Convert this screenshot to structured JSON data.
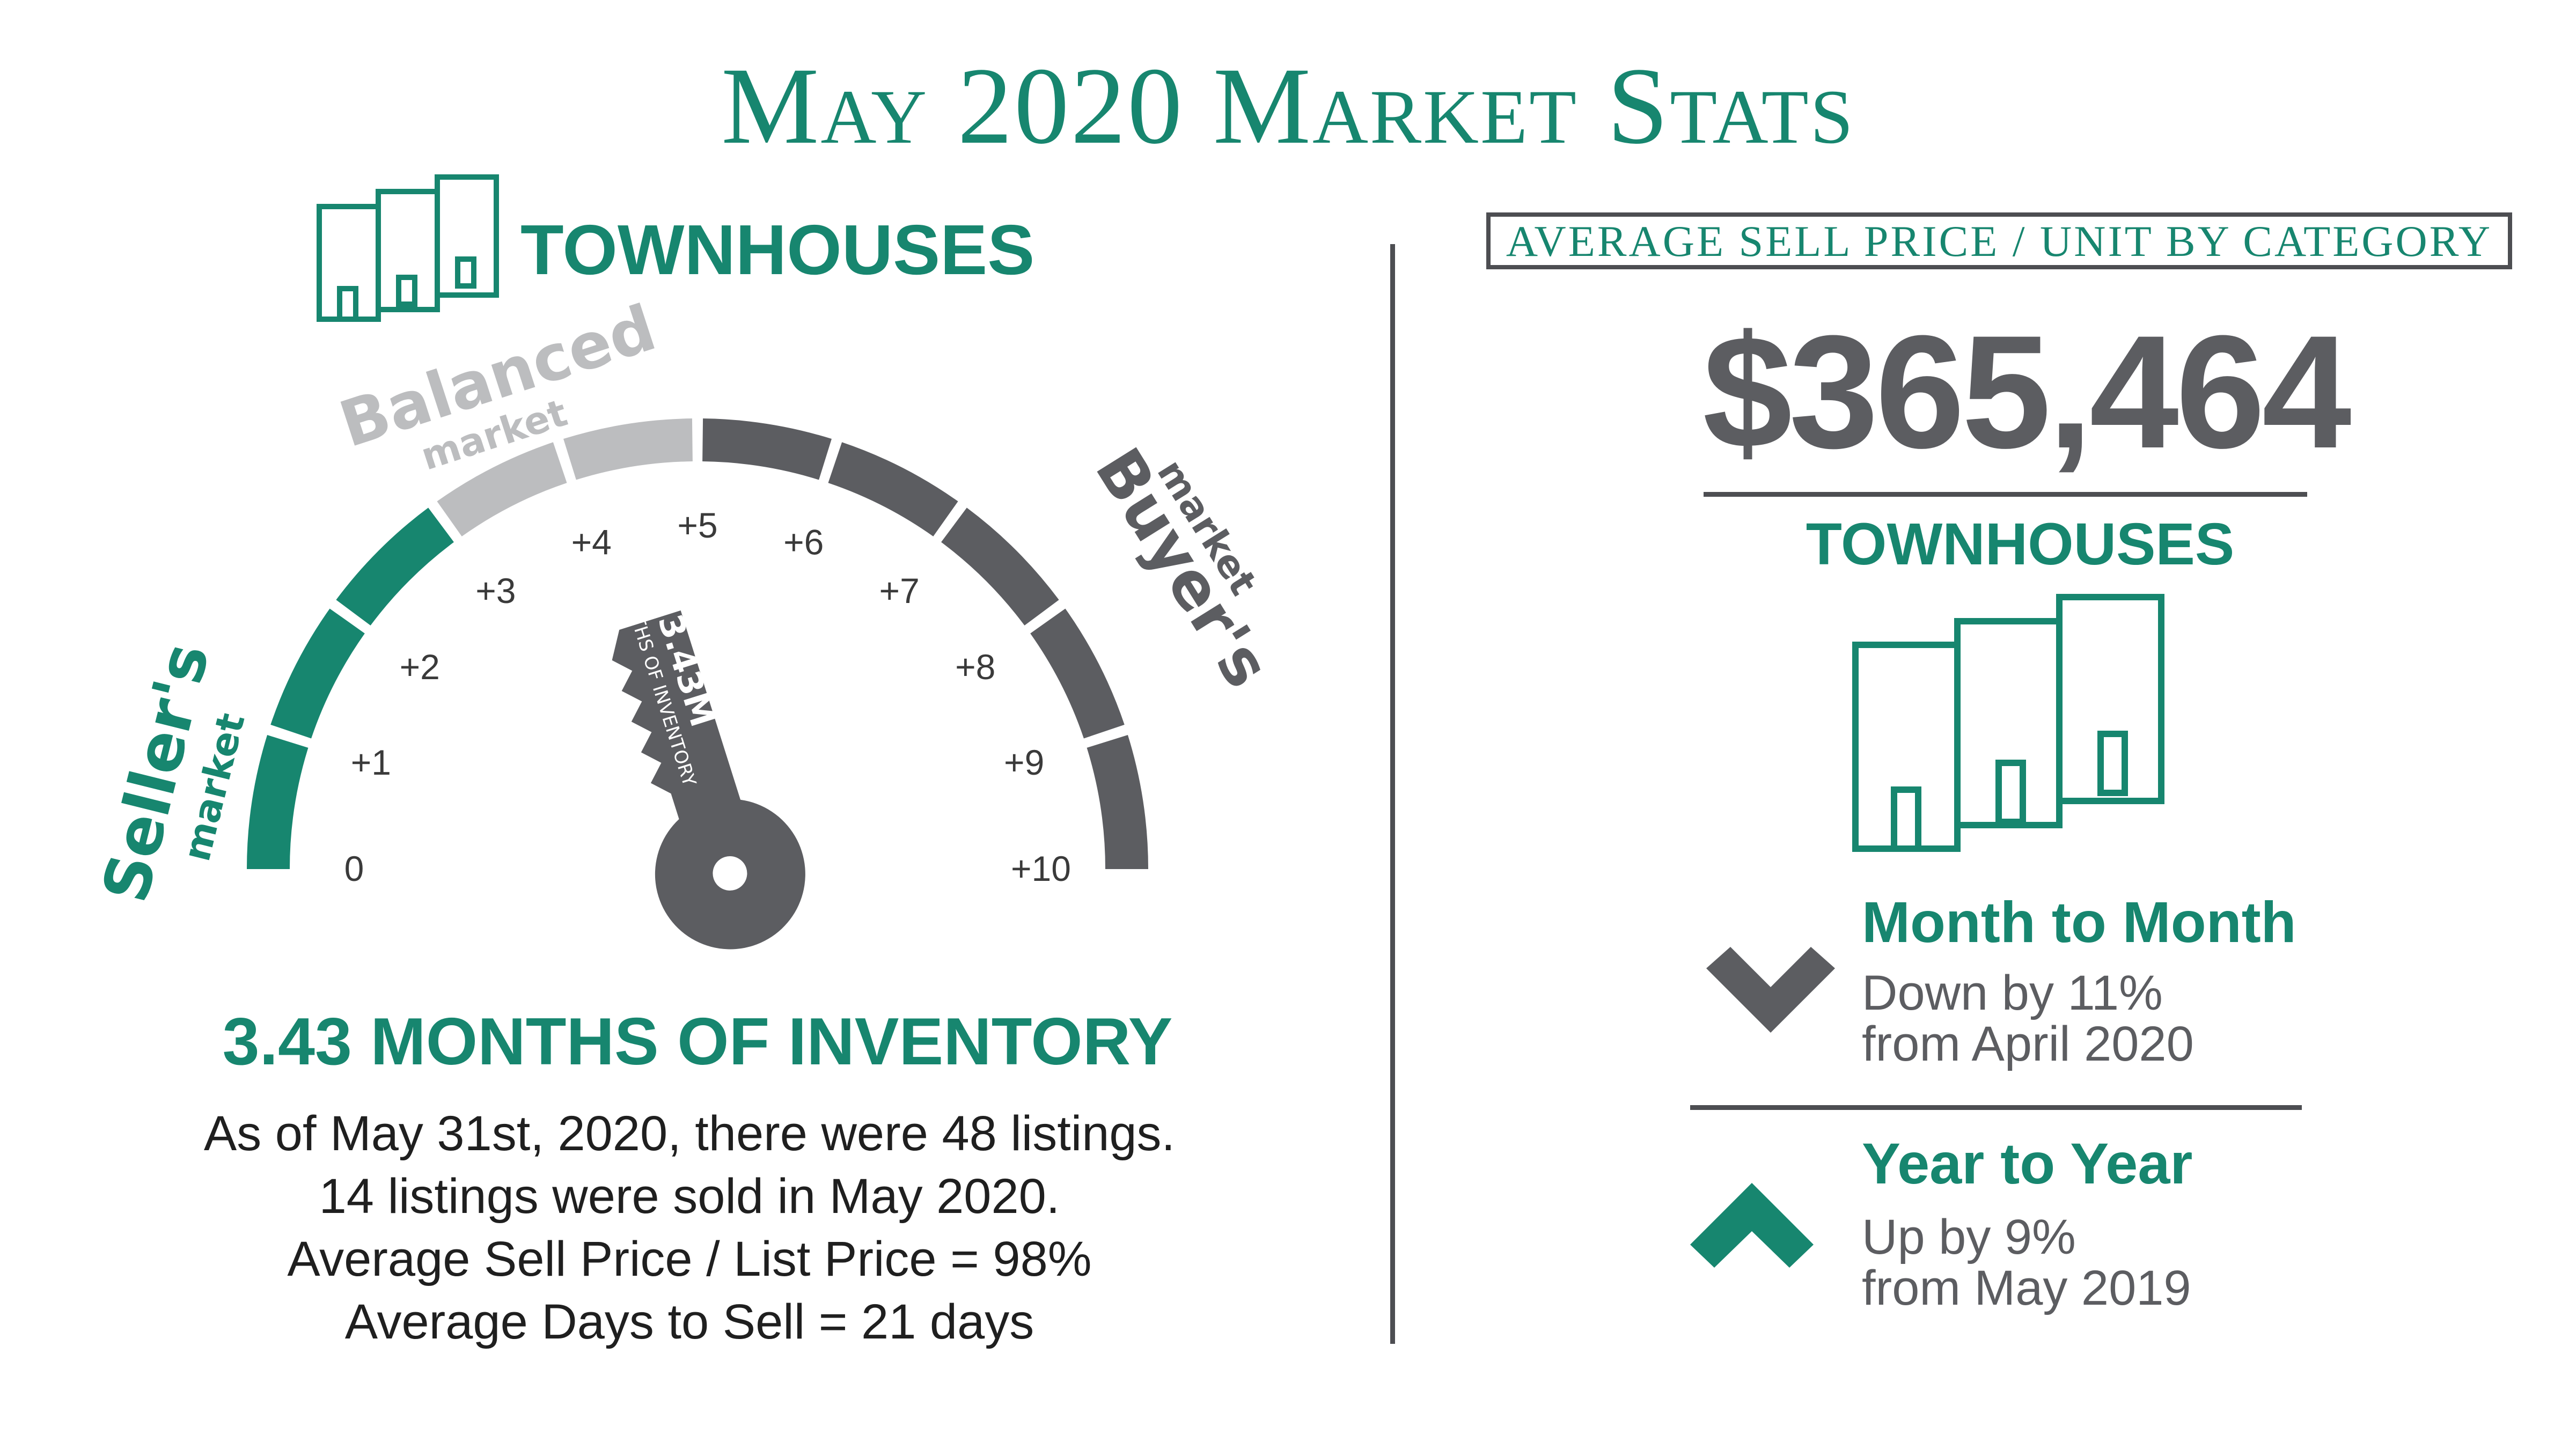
{
  "title": "May 2020 Market Stats",
  "left_panel": {
    "property_type": "TOWNHOUSES",
    "gauge": {
      "sellers_label": "Seller's",
      "sellers_sub": "market",
      "balanced_label": "Balanced",
      "balanced_sub": "market",
      "buyers_label": "Buyer's",
      "buyers_sub": "market",
      "ticks": [
        "0",
        "+1",
        "+2",
        "+3",
        "+4",
        "+5",
        "+6",
        "+7",
        "+8",
        "+9",
        "+10"
      ],
      "value": 3.43,
      "key_value_label": "3.43M",
      "key_caption": "MONTHS OF INVENTORY",
      "colors": {
        "sellers": "#17866f",
        "balanced": "#bcbdbf",
        "buyers": "#5c5d61"
      }
    },
    "headline": "3.43 MONTHS OF INVENTORY",
    "stats": [
      "As of May 31st, 2020, there were 48 listings.",
      "14 listings were sold in May 2020.",
      "Average Sell Price / List Price = 98%",
      "Average Days to Sell = 21 days"
    ]
  },
  "right_panel": {
    "category_header": "AVERAGE SELL PRICE / UNIT BY CATEGORY",
    "price": "$365,464",
    "property_type": "TOWNHOUSES",
    "month_to_month": {
      "title": "Month to Month",
      "line1": "Down by 11%",
      "line2": "from April 2020",
      "icon": "chevron-down-icon",
      "color": "#5c5d61"
    },
    "year_to_year": {
      "title": "Year to Year",
      "line1": "Up by 9%",
      "line2": "from May 2019",
      "icon": "chevron-up-icon",
      "color": "#17866f"
    }
  },
  "colors": {
    "accent": "#17866f",
    "gray": "#5c5d61",
    "light_gray": "#bcbdbf"
  }
}
